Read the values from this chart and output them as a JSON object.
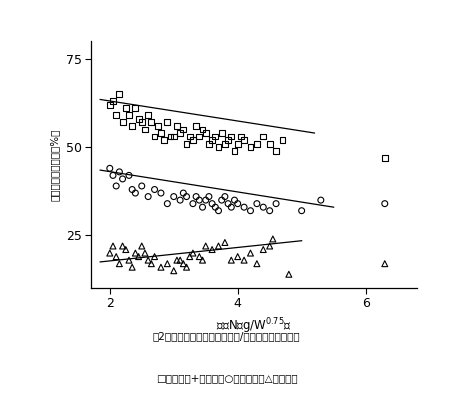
{
  "title": "図2．摂取窒素量と排泄窒素量/摂取窒素量との関係",
  "legend_text": "□：糞窒素+尿窒素　○：糞窒素　△：尿窒素",
  "xlabel": "摂取N（g/W$^{0.75}$）",
  "xlim": [
    1.7,
    6.8
  ],
  "ylim": [
    10,
    80
  ],
  "xticks": [
    2,
    4,
    6
  ],
  "yticks": [
    25,
    50,
    75
  ],
  "squares_x": [
    2.0,
    2.05,
    2.1,
    2.15,
    2.2,
    2.25,
    2.3,
    2.35,
    2.4,
    2.45,
    2.5,
    2.55,
    2.6,
    2.65,
    2.7,
    2.75,
    2.8,
    2.85,
    2.9,
    2.95,
    3.0,
    3.05,
    3.1,
    3.15,
    3.2,
    3.25,
    3.3,
    3.35,
    3.4,
    3.45,
    3.5,
    3.55,
    3.6,
    3.65,
    3.7,
    3.75,
    3.8,
    3.85,
    3.9,
    3.95,
    4.0,
    4.05,
    4.1,
    4.2,
    4.3,
    4.4,
    4.5,
    4.6,
    4.7,
    6.3
  ],
  "squares_y": [
    62,
    63,
    59,
    65,
    57,
    61,
    59,
    56,
    61,
    58,
    57,
    55,
    59,
    57,
    53,
    56,
    54,
    52,
    57,
    53,
    53,
    56,
    54,
    55,
    51,
    53,
    52,
    56,
    53,
    55,
    54,
    51,
    52,
    53,
    50,
    54,
    51,
    52,
    53,
    49,
    51,
    53,
    52,
    50,
    51,
    53,
    51,
    49,
    52,
    47
  ],
  "circles_x": [
    2.0,
    2.05,
    2.1,
    2.15,
    2.2,
    2.3,
    2.35,
    2.4,
    2.5,
    2.6,
    2.7,
    2.8,
    2.9,
    3.0,
    3.1,
    3.15,
    3.2,
    3.3,
    3.35,
    3.4,
    3.45,
    3.5,
    3.55,
    3.6,
    3.65,
    3.7,
    3.75,
    3.8,
    3.85,
    3.9,
    3.95,
    4.0,
    4.1,
    4.2,
    4.3,
    4.4,
    4.5,
    4.6,
    5.0,
    5.3,
    6.3
  ],
  "circles_y": [
    44,
    42,
    39,
    43,
    41,
    42,
    38,
    37,
    39,
    36,
    38,
    37,
    34,
    36,
    35,
    37,
    36,
    34,
    36,
    35,
    33,
    35,
    36,
    34,
    33,
    32,
    35,
    36,
    34,
    33,
    35,
    34,
    33,
    32,
    34,
    33,
    32,
    34,
    32,
    35,
    34
  ],
  "triangles_x": [
    2.0,
    2.05,
    2.1,
    2.15,
    2.2,
    2.25,
    2.3,
    2.35,
    2.4,
    2.45,
    2.5,
    2.55,
    2.6,
    2.65,
    2.7,
    2.8,
    2.9,
    3.0,
    3.05,
    3.1,
    3.15,
    3.2,
    3.25,
    3.3,
    3.4,
    3.45,
    3.5,
    3.6,
    3.7,
    3.8,
    3.9,
    4.0,
    4.1,
    4.2,
    4.3,
    4.4,
    4.5,
    4.55,
    4.8,
    6.3
  ],
  "triangles_y": [
    20,
    22,
    19,
    17,
    22,
    21,
    18,
    16,
    20,
    19,
    22,
    20,
    18,
    17,
    19,
    16,
    17,
    15,
    18,
    18,
    17,
    16,
    19,
    20,
    19,
    18,
    22,
    21,
    22,
    23,
    18,
    19,
    18,
    20,
    17,
    21,
    22,
    24,
    14,
    17
  ],
  "sq_line_x": [
    1.85,
    5.2
  ],
  "sq_line_y": [
    63.5,
    54.0
  ],
  "ci_line_x": [
    1.85,
    5.5
  ],
  "ci_line_y": [
    43.5,
    33.0
  ],
  "tr_line_x": [
    1.85,
    5.0
  ],
  "tr_line_y": [
    17.5,
    23.5
  ],
  "bg_color": "#ffffff",
  "plot_bg": "#ffffff",
  "marker_color": "#000000",
  "line_color": "#000000"
}
